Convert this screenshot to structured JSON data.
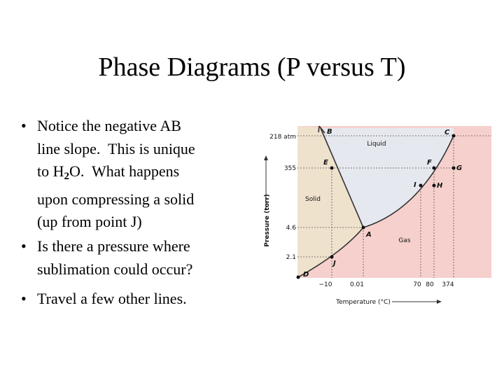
{
  "title": "Phase Diagrams (P versus T)",
  "bullets": [
    {
      "lines": [
        "Notice the negative AB",
        "line slope.  This is unique",
        {
          "text": "to H",
          "sub": "2",
          "rest": "O.  What happens"
        },
        "upon compressing a solid",
        "(up from point J)"
      ]
    },
    {
      "lines": [
        "Is there a pressure where",
        "sublimation could occur?"
      ]
    },
    {
      "lines": [
        "Travel a few other lines."
      ]
    }
  ],
  "diagram": {
    "y_axis_title": "Pressure (torr)",
    "x_axis_title": "Temperature (°C)",
    "y_tick_labels": [
      "218 atm",
      "355",
      "4.6",
      "2.1"
    ],
    "x_tick_labels": [
      "−10",
      "0.01",
      "70",
      "80",
      "374"
    ],
    "regions": [
      "Liquid",
      "Solid",
      "Gas"
    ],
    "points": [
      "B",
      "C",
      "E",
      "F",
      "G",
      "I",
      "H",
      "A",
      "J",
      "D"
    ]
  }
}
